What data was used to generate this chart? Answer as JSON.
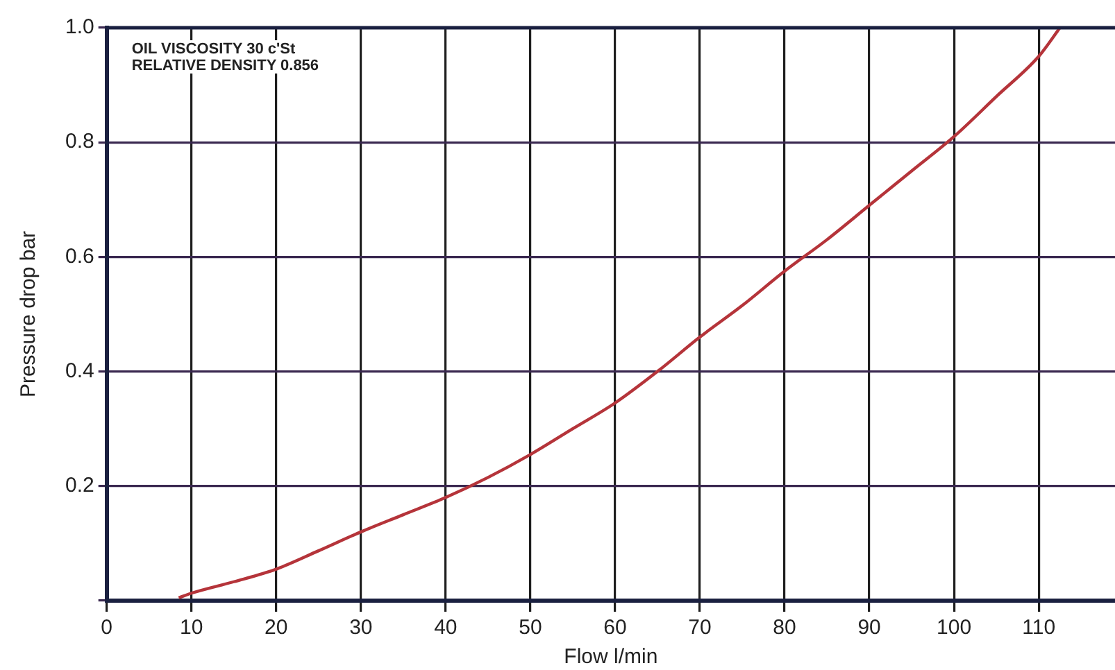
{
  "chart_data": {
    "type": "line",
    "xlabel": "Flow l/min",
    "ylabel": "Pressure drop bar",
    "annotations": [
      "OIL VISCOSITY 30 c'St",
      "RELATIVE DENSITY 0.856"
    ],
    "series": [
      {
        "color": "#b5343a",
        "x": [
          8.5,
          10,
          15,
          20,
          25,
          30,
          35,
          40,
          45,
          50,
          55,
          60,
          65,
          70,
          75,
          80,
          85,
          90,
          95,
          100,
          105,
          110,
          112.5
        ],
        "values": [
          0.005,
          0.013,
          0.033,
          0.055,
          0.087,
          0.12,
          0.15,
          0.18,
          0.215,
          0.255,
          0.3,
          0.345,
          0.4,
          0.46,
          0.515,
          0.575,
          0.63,
          0.69,
          0.75,
          0.81,
          0.88,
          0.95,
          1.0
        ]
      }
    ],
    "xlim": [
      0,
      119
    ],
    "xticks": [
      0,
      10,
      20,
      30,
      40,
      50,
      60,
      70,
      80,
      90,
      100,
      110
    ],
    "ylim": [
      0,
      1
    ],
    "yticks": [
      {
        "value": 0,
        "label": null
      },
      0.2,
      0.4,
      0.6,
      0.8,
      {
        "value": 1,
        "label": "1.0"
      }
    ],
    "grid": true,
    "marker": "none",
    "line_style": "solid"
  }
}
